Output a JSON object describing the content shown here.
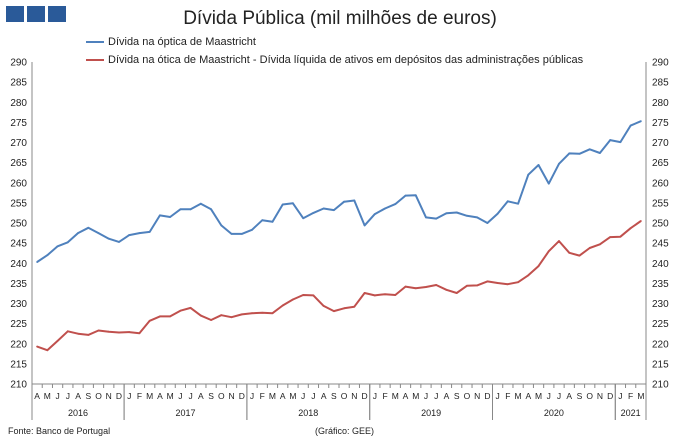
{
  "header": {
    "brand_color": "#2a5a99"
  },
  "chart_data": {
    "type": "line",
    "title": "Dívida Pública (mil milhões de euros)",
    "ylim": [
      210,
      290
    ],
    "yticks": [
      210,
      215,
      220,
      225,
      230,
      235,
      240,
      245,
      250,
      255,
      260,
      265,
      270,
      275,
      280,
      285,
      290
    ],
    "month_labels": [
      "A",
      "M",
      "J",
      "J",
      "A",
      "S",
      "O",
      "N",
      "D",
      "J",
      "F",
      "M",
      "A",
      "M",
      "J",
      "J",
      "A",
      "S",
      "O",
      "N",
      "D",
      "J",
      "F",
      "M",
      "A",
      "M",
      "J",
      "J",
      "A",
      "S",
      "O",
      "N",
      "D",
      "J",
      "F",
      "M",
      "A",
      "M",
      "J",
      "J",
      "A",
      "S",
      "O",
      "N",
      "D",
      "J",
      "F",
      "M",
      "A",
      "M",
      "J",
      "J",
      "A",
      "S",
      "O",
      "N",
      "D",
      "J",
      "F",
      "M"
    ],
    "years": [
      {
        "label": "2016",
        "start": 0,
        "end": 9
      },
      {
        "label": "2017",
        "start": 9,
        "end": 21
      },
      {
        "label": "2018",
        "start": 21,
        "end": 33
      },
      {
        "label": "2019",
        "start": 33,
        "end": 45
      },
      {
        "label": "2020",
        "start": 45,
        "end": 57
      },
      {
        "label": "2021",
        "start": 57,
        "end": 60
      }
    ],
    "series": [
      {
        "name": "Dívida na óptica de Maastricht",
        "color": "#4f81bd",
        "values": [
          240.3,
          242.0,
          244.2,
          245.2,
          247.5,
          248.8,
          247.5,
          246.1,
          245.3,
          247.0,
          247.5,
          247.8,
          251.9,
          251.5,
          253.4,
          253.4,
          254.8,
          253.4,
          249.4,
          247.3,
          247.3,
          248.3,
          250.7,
          250.3,
          254.6,
          254.9,
          251.2,
          252.5,
          253.6,
          253.2,
          255.3,
          255.6,
          249.4,
          252.2,
          253.6,
          254.7,
          256.8,
          256.9,
          251.4,
          251.1,
          252.4,
          252.6,
          251.8,
          251.4,
          250.0,
          252.3,
          255.4,
          254.8,
          262.0,
          264.4,
          259.8,
          264.7,
          267.3,
          267.2,
          268.3,
          267.4,
          270.6,
          270.1,
          274.2,
          275.3
        ]
      },
      {
        "name": "Dívida na ótica de Maastricht - Dívida líquida de ativos em depósitos das administrações públicas",
        "color": "#c0504d",
        "values": [
          219.3,
          218.4,
          220.7,
          223.1,
          222.5,
          222.2,
          223.3,
          223.0,
          222.8,
          222.9,
          222.6,
          225.7,
          226.8,
          226.8,
          228.2,
          228.9,
          227.0,
          225.9,
          227.1,
          226.6,
          227.3,
          227.6,
          227.7,
          227.6,
          229.5,
          231.0,
          232.1,
          232.0,
          229.4,
          228.1,
          228.8,
          229.2,
          232.6,
          232.0,
          232.3,
          232.1,
          234.2,
          233.8,
          234.1,
          234.6,
          233.4,
          232.6,
          234.4,
          234.5,
          235.5,
          235.1,
          234.8,
          235.3,
          237.0,
          239.3,
          243.0,
          245.5,
          242.6,
          241.9,
          243.8,
          244.7,
          246.5,
          246.6,
          248.7,
          250.5
        ]
      }
    ]
  },
  "footer": {
    "source": "Fonte: Banco de Portugal",
    "credit": "(Gráfico: GEE)"
  }
}
